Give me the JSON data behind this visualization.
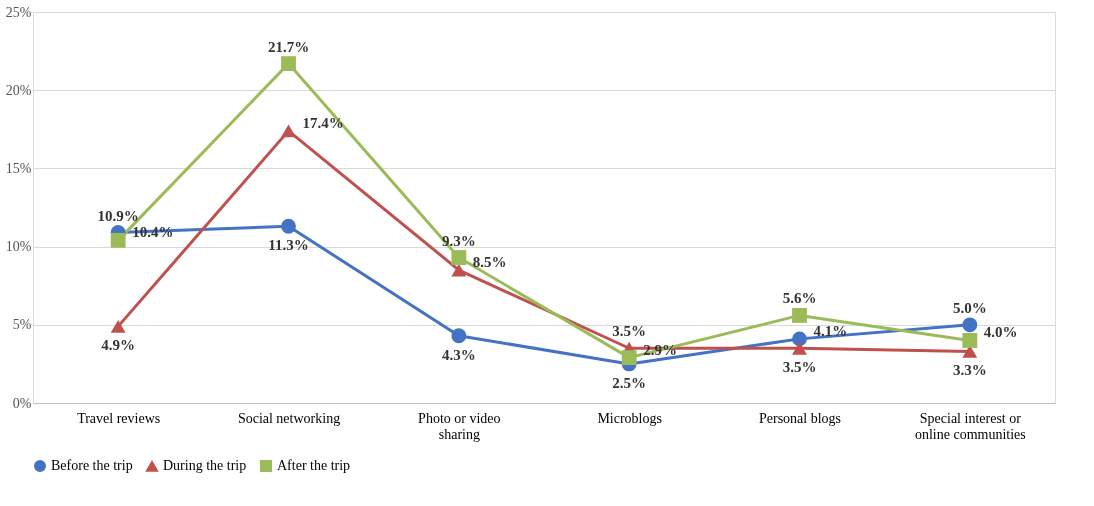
{
  "chart_data": {
    "type": "line",
    "categories": [
      "Travel reviews",
      "Social networking",
      "Photo or video sharing",
      "Microblogs",
      "Personal blogs",
      "Special interest or online communities"
    ],
    "series": [
      {
        "name": "Before the trip",
        "color": "#4472c4",
        "marker": "circle",
        "values": [
          10.9,
          11.3,
          4.3,
          2.5,
          4.1,
          5.0
        ],
        "value_labels": [
          "10.9%",
          "11.3%",
          "4.3%",
          "2.5%",
          "4.1%",
          "5.0%"
        ]
      },
      {
        "name": "During the trip",
        "color": "#c0504d",
        "marker": "triangle",
        "values": [
          4.9,
          17.4,
          8.5,
          3.5,
          3.5,
          3.3
        ],
        "value_labels": [
          "4.9%",
          "17.4%",
          "8.5%",
          "3.5%",
          "3.5%",
          "3.3%"
        ]
      },
      {
        "name": "After the trip",
        "color": "#9bbb59",
        "marker": "square",
        "values": [
          10.4,
          21.7,
          9.3,
          2.9,
          5.6,
          4.0
        ],
        "value_labels": [
          "10.4%",
          "21.7%",
          "9.3%",
          "2.9%",
          "5.6%",
          "4.0%"
        ]
      }
    ],
    "ylim": [
      0,
      25
    ],
    "yticks": [
      {
        "value": 0,
        "label": "0%"
      },
      {
        "value": 5,
        "label": "5%"
      },
      {
        "value": 10,
        "label": "10%"
      },
      {
        "value": 15,
        "label": "15%"
      },
      {
        "value": 20,
        "label": "20%"
      },
      {
        "value": 25,
        "label": "25%"
      }
    ],
    "grid": "y",
    "legend": "bottom",
    "line_style": "solid"
  }
}
